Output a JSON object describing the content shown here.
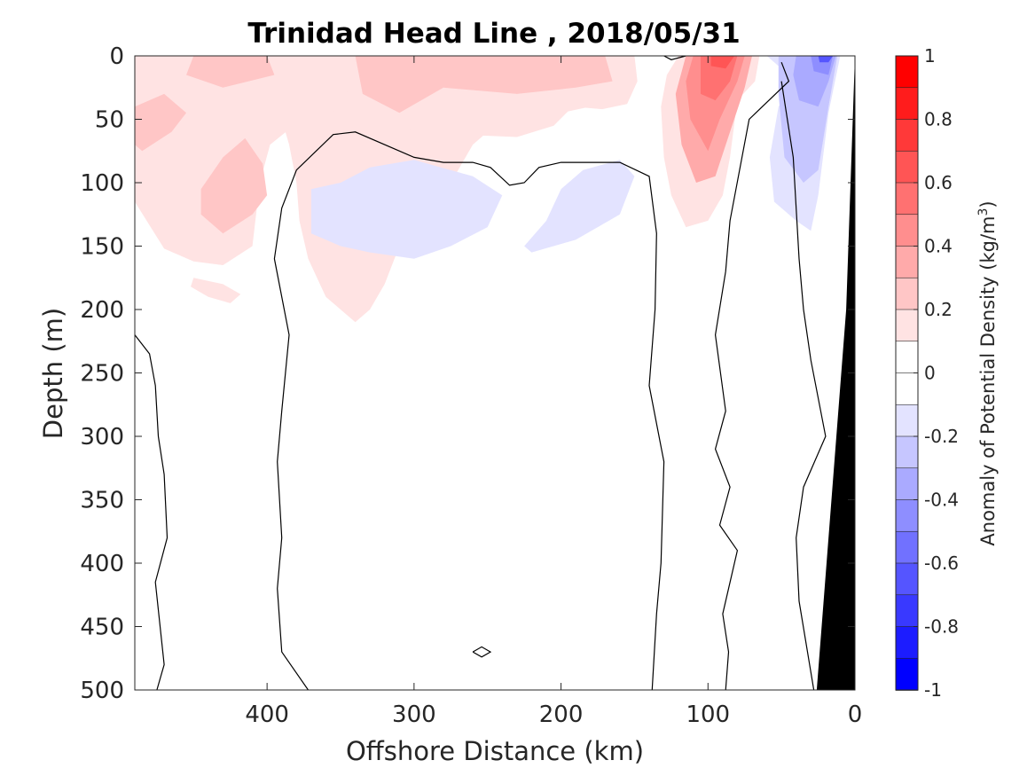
{
  "chart_data": {
    "type": "heatmap",
    "title": "Trinidad Head Line , 2018/05/31",
    "xlabel": "Offshore Distance (km)",
    "ylabel": "Depth (m)",
    "colorbar_label": "Anomaly of Potential Density (kg/m",
    "colorbar_label_sup": "3",
    "colorbar_label_end": ")",
    "xlim": [
      490,
      0
    ],
    "ylim": [
      0,
      500
    ],
    "x_ticks": [
      400,
      300,
      200,
      100,
      0
    ],
    "x_tick_labels": [
      "400",
      "300",
      "200",
      "100",
      "0"
    ],
    "y_ticks": [
      0,
      50,
      100,
      150,
      200,
      250,
      300,
      350,
      400,
      450,
      500
    ],
    "y_tick_labels": [
      "0",
      "50",
      "100",
      "150",
      "200",
      "250",
      "300",
      "350",
      "400",
      "450",
      "500"
    ],
    "clim": [
      -1,
      1
    ],
    "colorbar_ticks": [
      1,
      0.8,
      0.6,
      0.4,
      0.2,
      0,
      -0.2,
      -0.4,
      -0.6,
      -0.8,
      -1
    ],
    "colorbar_tick_labels": [
      "1",
      "0.8",
      "0.6",
      "0.4",
      "0.2",
      "0",
      "-0.2",
      "-0.4",
      "-0.6",
      "-0.8",
      "-1"
    ],
    "contour_levels": [
      -1,
      -0.9,
      -0.8,
      -0.7,
      -0.6,
      -0.5,
      -0.4,
      -0.3,
      -0.2,
      -0.1,
      0.1,
      0.2,
      0.3,
      0.4,
      0.5,
      0.6,
      0.7,
      0.8,
      0.9,
      1
    ],
    "colors": {
      "level_colors": [
        "#0000ff",
        "#1c1cff",
        "#3939ff",
        "#5555ff",
        "#7171ff",
        "#8e8eff",
        "#aaaaff",
        "#c6c6ff",
        "#e3e3ff",
        "#ffffff",
        "#ffffff",
        "#ffe3e3",
        "#ffc6c6",
        "#ffaaaa",
        "#ff8e8e",
        "#ff7171",
        "#ff5555",
        "#ff3939",
        "#ff1c1c",
        "#ff0000"
      ],
      "bottom_mask": "#000000",
      "contour_line": "#000000"
    },
    "regions": [
      {
        "name": "surface-positive-offshore",
        "value": 0.15,
        "points": [
          [
            490,
            0
          ],
          [
            440,
            0
          ],
          [
            420,
            10
          ],
          [
            400,
            30
          ],
          [
            390,
            50
          ],
          [
            385,
            70
          ],
          [
            380,
            100
          ],
          [
            378,
            130
          ],
          [
            372,
            160
          ],
          [
            360,
            190
          ],
          [
            350,
            200
          ],
          [
            340,
            210
          ],
          [
            330,
            200
          ],
          [
            320,
            180
          ],
          [
            310,
            150
          ],
          [
            300,
            120
          ],
          [
            290,
            110
          ],
          [
            280,
            110
          ],
          [
            270,
            90
          ],
          [
            260,
            70
          ],
          [
            250,
            60
          ],
          [
            240,
            55
          ],
          [
            230,
            55
          ],
          [
            220,
            50
          ],
          [
            200,
            45
          ],
          [
            180,
            40
          ],
          [
            160,
            35
          ],
          [
            150,
            25
          ],
          [
            150,
            0
          ]
        ],
        "clip": [
          490,
          0,
          150,
          200
        ]
      },
      {
        "name": "upper-positive-left",
        "value": 0.15,
        "points": [
          [
            490,
            0
          ],
          [
            345,
            0
          ],
          [
            346,
            40
          ],
          [
            370,
            50
          ],
          [
            385,
            58
          ],
          [
            398,
            70
          ],
          [
            405,
            100
          ],
          [
            410,
            150
          ],
          [
            430,
            165
          ],
          [
            450,
            162
          ],
          [
            470,
            152
          ],
          [
            490,
            115
          ]
        ]
      },
      {
        "name": "upper-positive-center",
        "value": 0.15,
        "points": [
          [
            345,
            0
          ],
          [
            150,
            0
          ],
          [
            148,
            20
          ],
          [
            155,
            38
          ],
          [
            172,
            42
          ],
          [
            192,
            40
          ],
          [
            205,
            55
          ],
          [
            230,
            64
          ],
          [
            270,
            62
          ],
          [
            300,
            58
          ],
          [
            325,
            56
          ],
          [
            345,
            45
          ]
        ]
      },
      {
        "name": "small-positive-patch",
        "value": 0.15,
        "points": [
          [
            450,
            175
          ],
          [
            430,
            180
          ],
          [
            418,
            188
          ],
          [
            425,
            195
          ],
          [
            440,
            190
          ],
          [
            452,
            182
          ]
        ]
      },
      {
        "name": "positive-03-left",
        "value": 0.25,
        "points": [
          [
            490,
            40
          ],
          [
            470,
            30
          ],
          [
            455,
            45
          ],
          [
            465,
            60
          ],
          [
            485,
            75
          ],
          [
            490,
            70
          ]
        ]
      },
      {
        "name": "positive-03-left2",
        "value": 0.25,
        "points": [
          [
            430,
            140
          ],
          [
            410,
            125
          ],
          [
            400,
            110
          ],
          [
            403,
            85
          ],
          [
            415,
            65
          ],
          [
            430,
            80
          ],
          [
            445,
            105
          ],
          [
            445,
            125
          ]
        ]
      },
      {
        "name": "positive-03-top",
        "value": 0.25,
        "points": [
          [
            450,
            0
          ],
          [
            400,
            0
          ],
          [
            395,
            15
          ],
          [
            430,
            25
          ],
          [
            455,
            15
          ]
        ]
      },
      {
        "name": "positive-03-center",
        "value": 0.25,
        "points": [
          [
            340,
            0
          ],
          [
            170,
            0
          ],
          [
            165,
            20
          ],
          [
            190,
            25
          ],
          [
            230,
            30
          ],
          [
            280,
            25
          ],
          [
            310,
            45
          ],
          [
            335,
            30
          ]
        ]
      },
      {
        "name": "north-core-02",
        "value": 0.15,
        "points": [
          [
            120,
            0
          ],
          [
            65,
            0
          ],
          [
            68,
            20
          ],
          [
            80,
            35
          ],
          [
            85,
            80
          ],
          [
            90,
            110
          ],
          [
            100,
            130
          ],
          [
            115,
            135
          ],
          [
            125,
            110
          ],
          [
            130,
            80
          ],
          [
            132,
            40
          ],
          [
            128,
            15
          ]
        ]
      },
      {
        "name": "north-core-04",
        "value": 0.35,
        "points": [
          [
            115,
            0
          ],
          [
            70,
            0
          ],
          [
            75,
            25
          ],
          [
            85,
            60
          ],
          [
            95,
            95
          ],
          [
            108,
            100
          ],
          [
            118,
            70
          ],
          [
            122,
            30
          ]
        ]
      },
      {
        "name": "north-core-05",
        "value": 0.45,
        "points": [
          [
            110,
            0
          ],
          [
            75,
            0
          ],
          [
            80,
            20
          ],
          [
            92,
            50
          ],
          [
            100,
            75
          ],
          [
            112,
            50
          ],
          [
            115,
            20
          ]
        ]
      },
      {
        "name": "north-core-06",
        "value": 0.55,
        "points": [
          [
            105,
            0
          ],
          [
            80,
            0
          ],
          [
            85,
            20
          ],
          [
            95,
            35
          ],
          [
            105,
            30
          ]
        ]
      },
      {
        "name": "north-core-07",
        "value": 0.65,
        "points": [
          [
            98,
            0
          ],
          [
            82,
            0
          ],
          [
            88,
            10
          ],
          [
            98,
            8
          ]
        ]
      },
      {
        "name": "negative-01-center",
        "value": -0.15,
        "points": [
          [
            370,
            105
          ],
          [
            350,
            100
          ],
          [
            330,
            88
          ],
          [
            300,
            82
          ],
          [
            260,
            95
          ],
          [
            240,
            110
          ],
          [
            250,
            135
          ],
          [
            275,
            150
          ],
          [
            300,
            160
          ],
          [
            330,
            155
          ],
          [
            350,
            150
          ],
          [
            370,
            140
          ]
        ]
      },
      {
        "name": "negative-01-right",
        "value": -0.15,
        "points": [
          [
            225,
            150
          ],
          [
            210,
            130
          ],
          [
            200,
            105
          ],
          [
            185,
            90
          ],
          [
            160,
            82
          ],
          [
            150,
            95
          ],
          [
            160,
            125
          ],
          [
            190,
            145
          ],
          [
            220,
            155
          ]
        ]
      },
      {
        "name": "shelf-negative-01",
        "value": -0.15,
        "points": [
          [
            60,
            0
          ],
          [
            10,
            0
          ],
          [
            18,
            45
          ],
          [
            25,
            110
          ],
          [
            30,
            138
          ],
          [
            40,
            130
          ],
          [
            55,
            115
          ],
          [
            58,
            80
          ],
          [
            52,
            40
          ],
          [
            40,
            20
          ]
        ]
      },
      {
        "name": "shelf-negative-02",
        "value": -0.25,
        "points": [
          [
            52,
            0
          ],
          [
            12,
            0
          ],
          [
            18,
            40
          ],
          [
            25,
            90
          ],
          [
            35,
            100
          ],
          [
            48,
            80
          ],
          [
            52,
            30
          ]
        ]
      },
      {
        "name": "shelf-negative-03",
        "value": -0.35,
        "points": [
          [
            40,
            0
          ],
          [
            13,
            0
          ],
          [
            18,
            20
          ],
          [
            25,
            40
          ],
          [
            38,
            35
          ],
          [
            42,
            15
          ]
        ]
      },
      {
        "name": "shelf-negative-04",
        "value": -0.45,
        "points": [
          [
            30,
            0
          ],
          [
            15,
            0
          ],
          [
            18,
            15
          ],
          [
            28,
            12
          ]
        ]
      },
      {
        "name": "shelf-negative-05",
        "value": -0.65,
        "points": [
          [
            25,
            0
          ],
          [
            15,
            0
          ],
          [
            18,
            5
          ],
          [
            24,
            5
          ]
        ]
      }
    ],
    "zero_contours": [
      {
        "points": [
          [
            490,
            220
          ],
          [
            480,
            235
          ],
          [
            476,
            260
          ],
          [
            474,
            300
          ],
          [
            470,
            330
          ],
          [
            468,
            380
          ],
          [
            476,
            415
          ],
          [
            470,
            480
          ],
          [
            475,
            500
          ]
        ]
      },
      {
        "points": [
          [
            372,
            500
          ],
          [
            390,
            470
          ],
          [
            393,
            420
          ],
          [
            390,
            380
          ],
          [
            393,
            320
          ],
          [
            390,
            280
          ],
          [
            385,
            220
          ],
          [
            395,
            160
          ],
          [
            390,
            120
          ],
          [
            380,
            90
          ],
          [
            355,
            62
          ],
          [
            340,
            60
          ],
          [
            300,
            80
          ],
          [
            280,
            84
          ],
          [
            260,
            84
          ],
          [
            248,
            88
          ],
          [
            235,
            102
          ],
          [
            225,
            100
          ],
          [
            215,
            88
          ],
          [
            200,
            84
          ],
          [
            160,
            84
          ],
          [
            140,
            95
          ],
          [
            135,
            140
          ],
          [
            136,
            200
          ],
          [
            140,
            260
          ],
          [
            130,
            320
          ],
          [
            132,
            400
          ],
          [
            135,
            440
          ],
          [
            138,
            500
          ]
        ]
      },
      {
        "points": [
          [
            88,
            500
          ],
          [
            86,
            470
          ],
          [
            90,
            440
          ],
          [
            80,
            390
          ],
          [
            92,
            370
          ],
          [
            85,
            340
          ],
          [
            95,
            310
          ],
          [
            88,
            280
          ],
          [
            95,
            220
          ],
          [
            88,
            170
          ],
          [
            85,
            130
          ],
          [
            72,
            50
          ],
          [
            45,
            20
          ],
          [
            50,
            5
          ]
        ]
      },
      {
        "points": [
          [
            28,
            500
          ],
          [
            38,
            430
          ],
          [
            40,
            380
          ],
          [
            35,
            340
          ],
          [
            20,
            300
          ],
          [
            30,
            240
          ],
          [
            35,
            200
          ],
          [
            38,
            160
          ],
          [
            40,
            120
          ],
          [
            42,
            80
          ],
          [
            50,
            20
          ]
        ]
      },
      {
        "points": [
          [
            130,
            0
          ],
          [
            125,
            3
          ],
          [
            115,
            0
          ]
        ]
      },
      {
        "points": [
          [
            260,
            470
          ],
          [
            254,
            466
          ],
          [
            248,
            470
          ],
          [
            254,
            474
          ],
          [
            260,
            470
          ]
        ]
      }
    ],
    "bottom_mask": {
      "points": [
        [
          0,
          0
        ],
        [
          0,
          500
        ],
        [
          26,
          500
        ],
        [
          6,
          200
        ],
        [
          0,
          0
        ]
      ]
    }
  }
}
